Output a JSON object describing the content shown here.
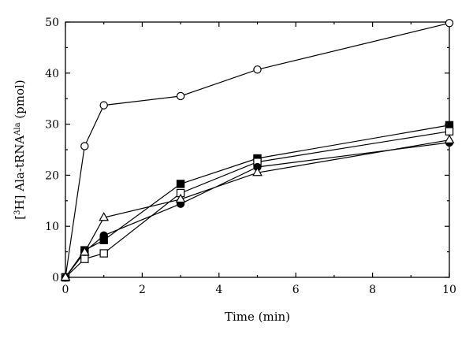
{
  "chart_data": {
    "type": "line",
    "xlabel": "Time (min)",
    "ylabel": {
      "prefix": "[",
      "sup1": "3",
      "mid": "H] Ala-tRNA",
      "sup2": "Ala",
      "suffix": " (pmol)"
    },
    "xlim": [
      0,
      10
    ],
    "ylim": [
      0,
      50
    ],
    "xticks": [
      0,
      2,
      4,
      6,
      8,
      10
    ],
    "yticks": [
      0,
      10,
      20,
      30,
      40,
      50
    ],
    "grid": false,
    "x": [
      0,
      0.5,
      1,
      3,
      5,
      10
    ],
    "series": [
      {
        "marker": "open-circle",
        "values": [
          0,
          25.7,
          33.7,
          35.5,
          40.7,
          49.8
        ]
      },
      {
        "marker": "filled-square",
        "values": [
          0,
          5.3,
          7.3,
          18.3,
          23.3,
          29.8
        ]
      },
      {
        "marker": "open-square",
        "values": [
          0,
          3.6,
          4.7,
          16.5,
          22.6,
          28.6
        ]
      },
      {
        "marker": "filled-circle",
        "values": [
          0,
          5.0,
          8.2,
          14.4,
          21.6,
          26.4
        ]
      },
      {
        "marker": "open-triangle",
        "values": [
          0,
          4.9,
          11.7,
          15.3,
          20.5,
          26.9
        ]
      }
    ],
    "colors": {
      "ink": "#000000",
      "background": "#ffffff"
    }
  }
}
